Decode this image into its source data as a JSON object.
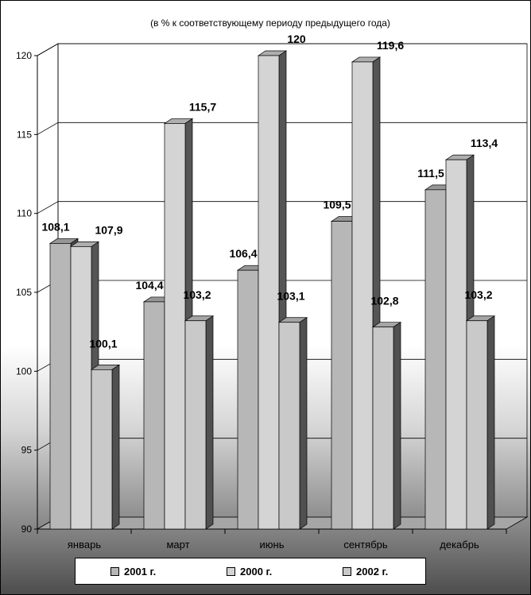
{
  "chart_data": {
    "type": "bar",
    "title": "",
    "subtitle": "(в % к  соответствующему  периоду  предыдущего  года)",
    "xlabel": "",
    "ylabel": "",
    "categories": [
      "январь",
      "март",
      "июнь",
      "сентябрь",
      "декабрь"
    ],
    "series": [
      {
        "name": "2001 г.",
        "color": "#b7b7b7",
        "values": [
          108.1,
          104.4,
          106.4,
          109.5,
          111.5
        ],
        "labels": [
          "108,1",
          "104,4",
          "106,4",
          "109,5",
          "111,5"
        ]
      },
      {
        "name": "2000 г.",
        "color": "#d4d4d4",
        "values": [
          107.9,
          115.7,
          120,
          119.6,
          113.4
        ],
        "labels": [
          "107,9",
          "115,7",
          "120",
          "119,6",
          "113,4"
        ]
      },
      {
        "name": "2002 г.",
        "color": "#c9c9c9",
        "values": [
          100.1,
          103.2,
          103.1,
          102.8,
          103.2
        ],
        "labels": [
          "100,1",
          "103,2",
          "103,1",
          "102,8",
          "103,2"
        ]
      }
    ],
    "ylim": [
      90,
      120
    ],
    "yticks": [
      90,
      95,
      100,
      105,
      110,
      115,
      120
    ],
    "grid": true,
    "legend": "bottom",
    "three_d": true
  }
}
